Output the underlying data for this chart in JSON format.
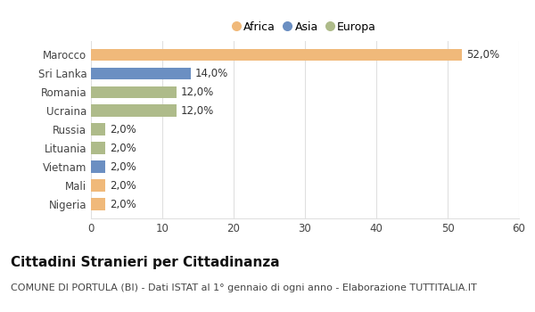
{
  "categories": [
    "Marocco",
    "Sri Lanka",
    "Romania",
    "Ucraina",
    "Russia",
    "Lituania",
    "Vietnam",
    "Mali",
    "Nigeria"
  ],
  "values": [
    52.0,
    14.0,
    12.0,
    12.0,
    2.0,
    2.0,
    2.0,
    2.0,
    2.0
  ],
  "colors": [
    "#F0B97A",
    "#6B8FC2",
    "#AEBB8A",
    "#AEBB8A",
    "#AEBB8A",
    "#AEBB8A",
    "#6B8FC2",
    "#F0B97A",
    "#F0B97A"
  ],
  "labels": [
    "52,0%",
    "14,0%",
    "12,0%",
    "12,0%",
    "2,0%",
    "2,0%",
    "2,0%",
    "2,0%",
    "2,0%"
  ],
  "legend": [
    {
      "label": "Africa",
      "color": "#F0B97A"
    },
    {
      "label": "Asia",
      "color": "#6B8FC2"
    },
    {
      "label": "Europa",
      "color": "#AEBB8A"
    }
  ],
  "xlim": [
    0,
    60
  ],
  "xticks": [
    0,
    10,
    20,
    30,
    40,
    50,
    60
  ],
  "title": "Cittadini Stranieri per Cittadinanza",
  "subtitle": "COMUNE DI PORTULA (BI) - Dati ISTAT al 1° gennaio di ogni anno - Elaborazione TUTTITALIA.IT",
  "background_color": "#ffffff",
  "grid_color": "#e0e0e0",
  "bar_height": 0.65,
  "title_fontsize": 11,
  "subtitle_fontsize": 8,
  "label_fontsize": 8.5
}
